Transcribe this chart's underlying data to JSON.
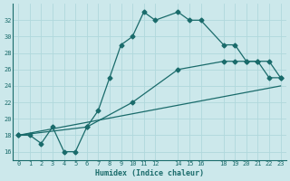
{
  "xlabel": "Humidex (Indice chaleur)",
  "bg_color": "#cce8eb",
  "line_color": "#1a6b6b",
  "grid_color": "#b0d8dc",
  "xlim": [
    -0.5,
    23.5
  ],
  "ylim": [
    15,
    34
  ],
  "xticks": [
    0,
    1,
    2,
    3,
    4,
    5,
    6,
    7,
    8,
    9,
    10,
    11,
    12,
    14,
    15,
    16,
    18,
    19,
    20,
    21,
    22,
    23
  ],
  "yticks": [
    16,
    18,
    20,
    22,
    24,
    26,
    28,
    30,
    32
  ],
  "series1_x": [
    0,
    1,
    2,
    3,
    4,
    5,
    6,
    7,
    8,
    9,
    10,
    11,
    12,
    14,
    15,
    16,
    18,
    19,
    20,
    21,
    22,
    23
  ],
  "series1_y": [
    18,
    18,
    17,
    19,
    16,
    16,
    19,
    21,
    25,
    29,
    30,
    33,
    32,
    33,
    32,
    32,
    29,
    29,
    27,
    27,
    25,
    25
  ],
  "series2_x": [
    0,
    6,
    10,
    14,
    18,
    19,
    20,
    21,
    22,
    23
  ],
  "series2_y": [
    18,
    19,
    22,
    26,
    27,
    27,
    27,
    27,
    27,
    25
  ],
  "series3_x": [
    0,
    23
  ],
  "series3_y": [
    18,
    24
  ]
}
